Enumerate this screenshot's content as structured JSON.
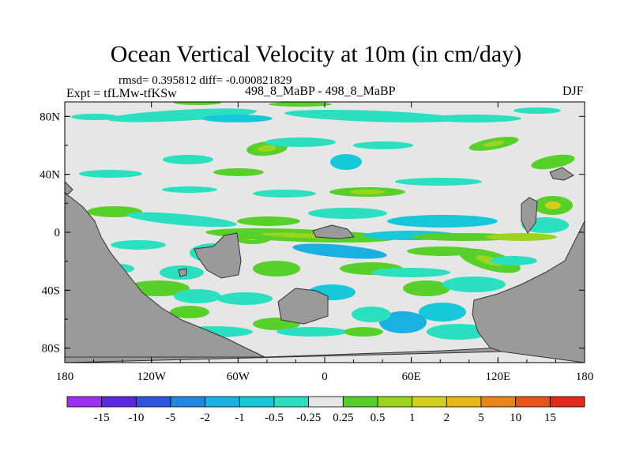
{
  "chart_data": {
    "type": "heatmap",
    "title": "Ocean Vertical Velocity at 10m (in cm/day)",
    "stats": "rmsd= 0.395812 diff= -0.000821829",
    "left_label": "Expt = tfLMw-tfKSw",
    "center_label": "498_8_MaBP - 498_8_MaBP",
    "right_label": "DJF",
    "x_range": [
      -180,
      180
    ],
    "y_range": [
      -90,
      90
    ],
    "x_ticks": [
      {
        "value": -180,
        "label": "180"
      },
      {
        "value": -120,
        "label": "120W"
      },
      {
        "value": -60,
        "label": "60W"
      },
      {
        "value": 0,
        "label": "0"
      },
      {
        "value": 60,
        "label": "60E"
      },
      {
        "value": 120,
        "label": "120E"
      },
      {
        "value": 180,
        "label": "180"
      }
    ],
    "y_ticks": [
      {
        "value": 80,
        "label": "80N"
      },
      {
        "value": 40,
        "label": "40N"
      },
      {
        "value": 0,
        "label": "0"
      },
      {
        "value": -40,
        "label": "40S"
      },
      {
        "value": -80,
        "label": "80S"
      }
    ],
    "colorbar": {
      "colors": [
        "#9b30f0",
        "#5a28e0",
        "#2f55e0",
        "#1f88e0",
        "#1cb0e0",
        "#17c8d8",
        "#2ae0c0",
        "#e6e6e6",
        "#58d02a",
        "#9ad41c",
        "#d2d01a",
        "#e6b81a",
        "#e6861a",
        "#e6541a",
        "#e02a1a"
      ],
      "labels": [
        "-15",
        "-10",
        "-5",
        "-2",
        "-1",
        "-0.5",
        "-0.25",
        "0.25",
        "0.5",
        "1",
        "2",
        "5",
        "10",
        "15"
      ]
    },
    "land_color": "#9a9a9a",
    "background_color": "#e6e6e6"
  }
}
